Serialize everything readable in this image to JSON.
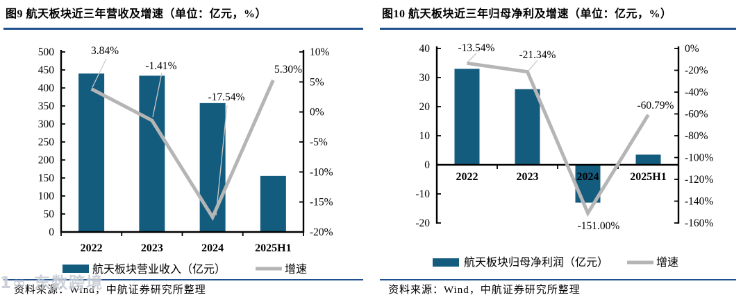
{
  "page": {
    "watermark": "1∞ 东数跨境"
  },
  "figures": [
    {
      "title": "图9 航天板块近三年营收及增速（单位：亿元，%）",
      "source": "资料来源：Wind，中航证券研究所整理"
    },
    {
      "title": "图10 航天板块近三年归母净利及增速（单位：亿元，%）",
      "source": "资料来源：Wind，中航证券研究所整理"
    }
  ],
  "chart_data": [
    {
      "type": "bar",
      "title": "图9 航天板块近三年营收及增速（单位：亿元，%）",
      "categories": [
        "2022",
        "2023",
        "2024",
        "2025H1"
      ],
      "series": [
        {
          "name": "航天板块营业收入（亿元）",
          "type": "bar",
          "axis": "left",
          "values": [
            440,
            434,
            358,
            156
          ]
        },
        {
          "name": "增速",
          "type": "line",
          "axis": "right",
          "values": [
            3.84,
            -1.41,
            -17.54,
            5.3
          ],
          "point_labels": [
            "3.84%",
            "-1.41%",
            "-17.54%",
            "5.30%"
          ]
        }
      ],
      "left_axis": {
        "min": 0,
        "max": 500,
        "step": 50,
        "format": "number"
      },
      "right_axis": {
        "min": -20,
        "max": 10,
        "step": 5,
        "format": "percent"
      },
      "legend_position": "bottom",
      "grid": false
    },
    {
      "type": "bar",
      "title": "图10 航天板块近三年归母净利及增速（单位：亿元，%）",
      "categories": [
        "2022",
        "2023",
        "2024",
        "2025H1"
      ],
      "series": [
        {
          "name": "航天板块归母净利润（亿元）",
          "type": "bar",
          "axis": "left",
          "values": [
            33,
            26,
            -13,
            3.5
          ]
        },
        {
          "name": "增速",
          "type": "line",
          "axis": "right",
          "values": [
            -13.54,
            -21.34,
            -151.0,
            -60.79
          ],
          "point_labels": [
            "-13.54%",
            "-21.34%",
            "-151.00%",
            "-60.79%"
          ]
        }
      ],
      "left_axis": {
        "min": -20,
        "max": 40,
        "step": 10,
        "format": "number"
      },
      "right_axis": {
        "min": -160,
        "max": 0,
        "step": 20,
        "format": "percent"
      },
      "legend_position": "bottom",
      "grid": false
    }
  ],
  "colors": {
    "bar": "#135C7E",
    "line": "#B5B5B5",
    "leader": "#C9C9C9",
    "separator": "#1F4E8C",
    "axis": "#000000",
    "text": "#000000"
  }
}
